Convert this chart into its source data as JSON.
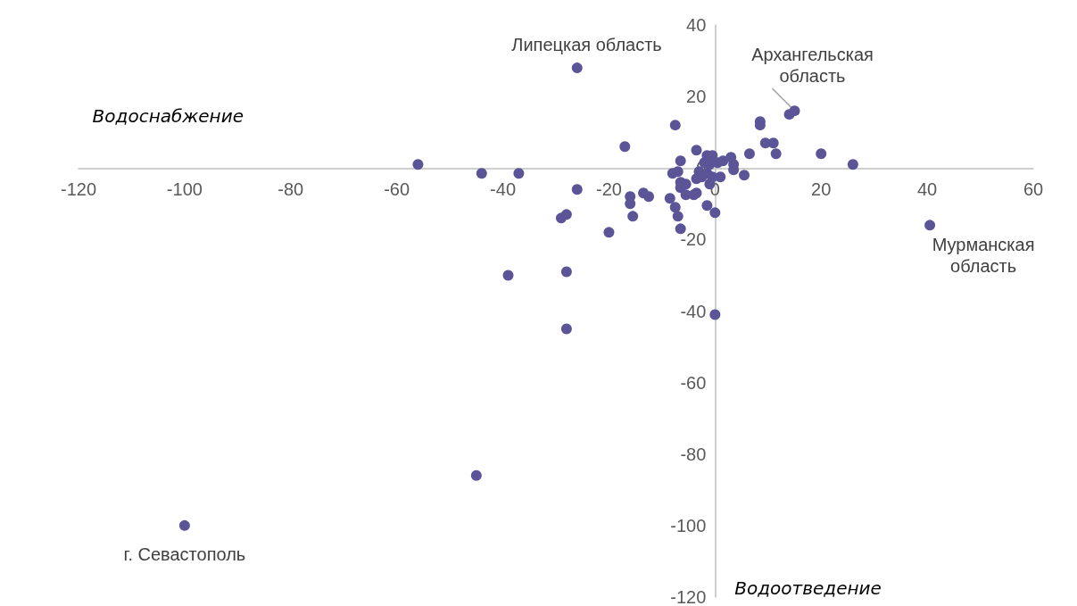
{
  "chart_data": {
    "type": "scatter",
    "xlabel": "Водоснабжение",
    "ylabel": "Водоотведение",
    "x": [
      -56,
      -44,
      -37,
      -26,
      -26,
      -28,
      -29,
      -28,
      -39,
      -28,
      -45,
      -100,
      -20,
      -17,
      -16,
      -16,
      -15.5,
      -13.5,
      -12.5,
      -7.5,
      -8.5,
      -7.5,
      -7,
      -6.5,
      -6.5,
      -8,
      -3.5,
      -1.5,
      0,
      0,
      14,
      15,
      8.5,
      8.5,
      9.5,
      11,
      11.5,
      6.5,
      20,
      26,
      40.5,
      -7,
      -6.5,
      -5.5,
      -6.5,
      -5.5,
      -4,
      -3.5,
      -1.5,
      -0.5,
      -2,
      -1,
      0.5,
      1.5,
      3,
      3.5,
      3.5,
      5.5,
      1,
      -0.5,
      -1.5,
      -3,
      -3.5,
      -2.5,
      -1
    ],
    "series": [
      {
        "color": "#5b5597",
        "values": [
          1,
          -1.5,
          -1.5,
          28,
          -6,
          -13,
          -14,
          -29,
          -30,
          -45,
          -86,
          -100,
          -18,
          6,
          -8,
          -10,
          -13.5,
          -7,
          -8,
          12,
          -8.5,
          -11,
          -13.5,
          -17,
          2,
          -1.5,
          5,
          -10.5,
          -12.5,
          -41,
          15,
          16,
          13,
          12,
          7,
          7,
          4,
          4,
          4,
          1,
          -16,
          -1,
          -4,
          -4.5,
          -5.5,
          -7.5,
          -7.5,
          -7,
          3.5,
          3.5,
          1.5,
          1,
          1.5,
          2,
          3,
          1,
          -0.5,
          -2,
          -2.5,
          -2.5,
          -1.5,
          -1,
          -3,
          -2.5,
          -4.5
        ]
      }
    ],
    "xlim": [
      -120,
      60
    ],
    "xticks": [
      -120,
      -100,
      -80,
      -60,
      -40,
      -20,
      0,
      20,
      40,
      60
    ],
    "ylim": [
      -120,
      40
    ],
    "yticks": [
      -120,
      -100,
      -80,
      -60,
      -40,
      -20,
      0,
      20,
      40
    ],
    "grid": false,
    "marker": "circle",
    "annotations": [
      {
        "text": "Липецкая область",
        "x": -26,
        "y": 28
      },
      {
        "text": "Архангельская\nобласть",
        "x": 15,
        "y": 16
      },
      {
        "text": "Мурманская\nобласть",
        "x": 40.5,
        "y": -16
      },
      {
        "text": "г. Севастополь",
        "x": -100,
        "y": -100
      }
    ]
  }
}
